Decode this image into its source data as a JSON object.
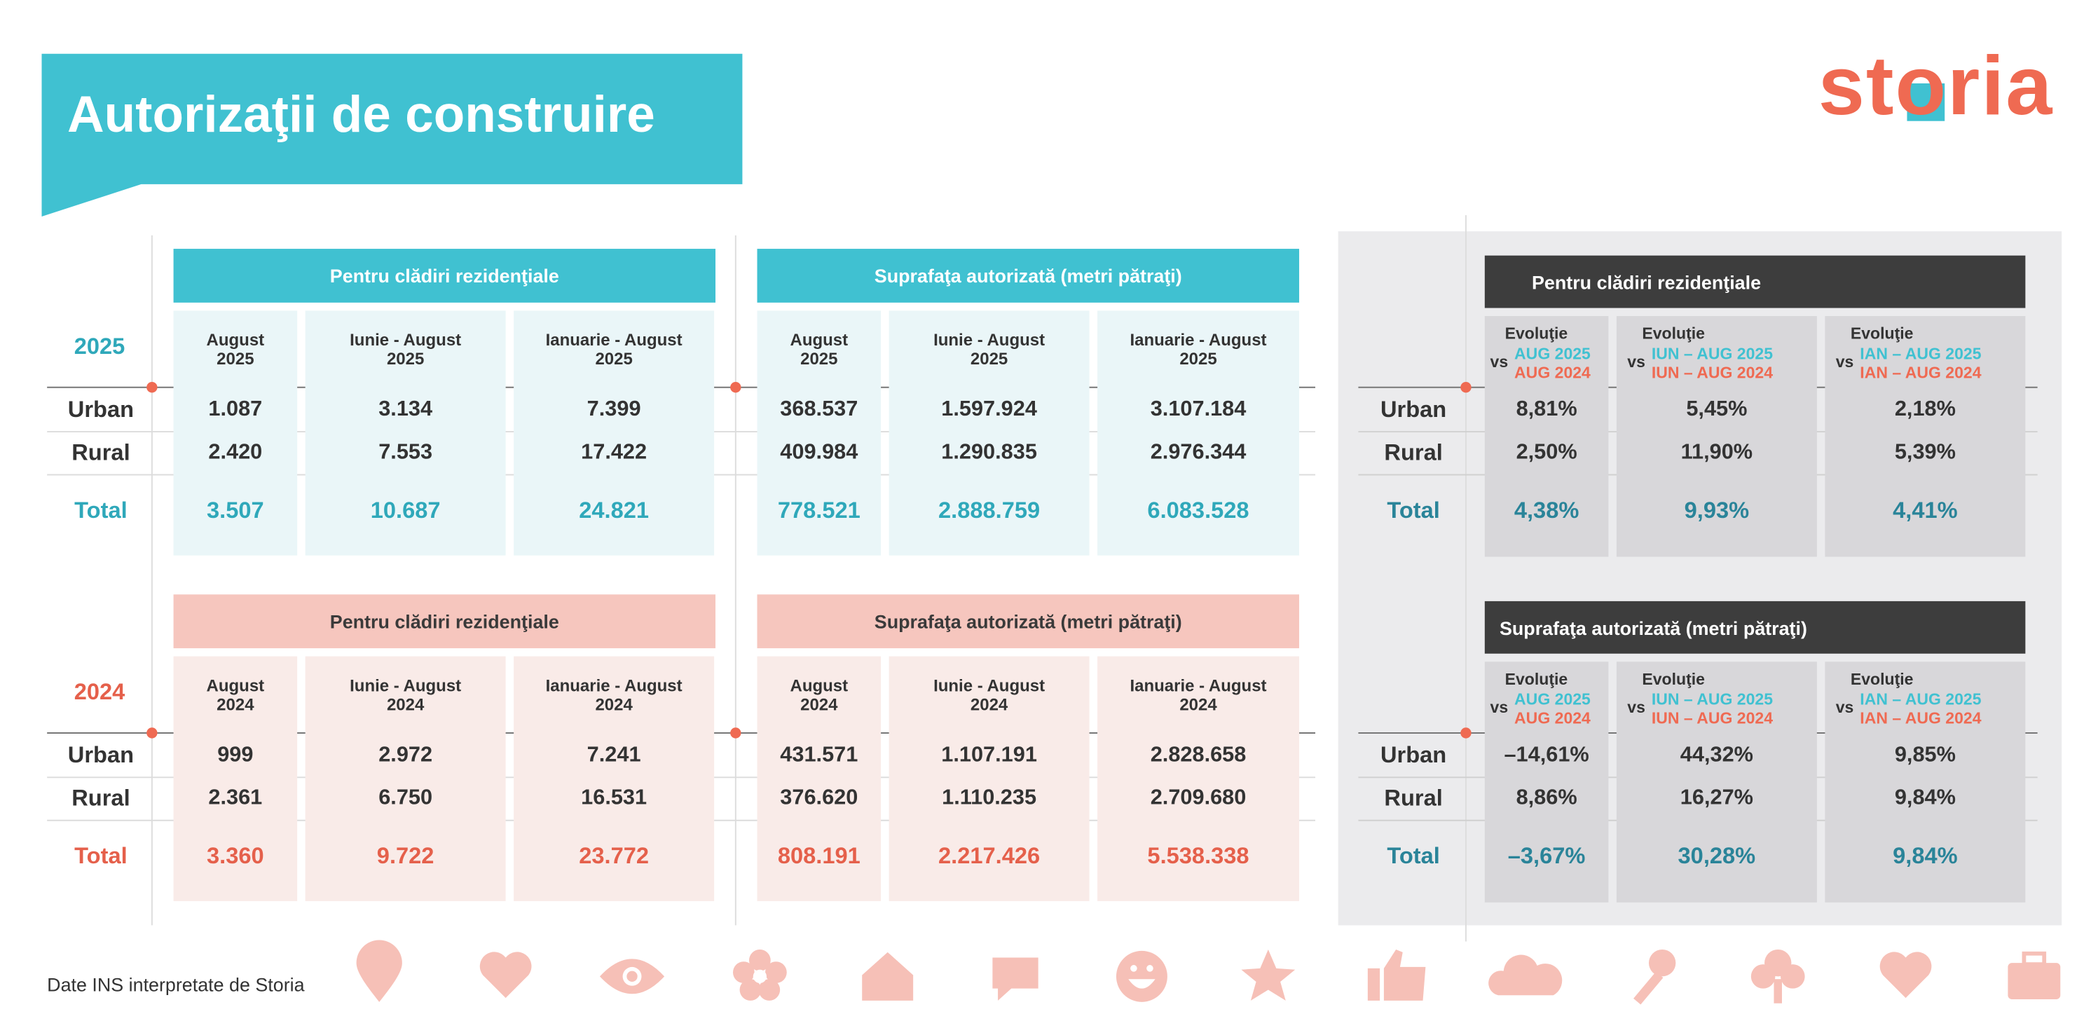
{
  "header": {
    "title": "Autorizaţii de construire",
    "logo": "storia"
  },
  "years": [
    {
      "year": "2025",
      "groups": [
        {
          "title": "Pentru clădiri rezidenţiale",
          "columns": [
            [
              "August",
              "2025"
            ],
            [
              "Iunie - August",
              "2025"
            ],
            [
              "Ianuarie - August",
              "2025"
            ]
          ]
        },
        {
          "title": "Suprafaţa autorizată (metri pătraţi)",
          "columns": [
            [
              "August",
              "2025"
            ],
            [
              "Iunie - August",
              "2025"
            ],
            [
              "Ianuarie - August",
              "2025"
            ]
          ]
        }
      ],
      "rows": [
        {
          "label": "Urban",
          "cells": [
            "1.087",
            "3.134",
            "7.399",
            "368.537",
            "1.597.924",
            "3.107.184"
          ]
        },
        {
          "label": "Rural",
          "cells": [
            "2.420",
            "7.553",
            "17.422",
            "409.984",
            "1.290.835",
            "2.976.344"
          ]
        },
        {
          "label": "Total",
          "cells": [
            "3.507",
            "10.687",
            "24.821",
            "778.521",
            "2.888.759",
            "6.083.528"
          ]
        }
      ]
    },
    {
      "year": "2024",
      "groups": [
        {
          "title": "Pentru clădiri rezidenţiale",
          "columns": [
            [
              "August",
              "2024"
            ],
            [
              "Iunie - August",
              "2024"
            ],
            [
              "Ianuarie - August",
              "2024"
            ]
          ]
        },
        {
          "title": "Suprafaţa autorizată (metri pătraţi)",
          "columns": [
            [
              "August",
              "2024"
            ],
            [
              "Iunie - August",
              "2024"
            ],
            [
              "Ianuarie - August",
              "2024"
            ]
          ]
        }
      ],
      "rows": [
        {
          "label": "Urban",
          "cells": [
            "999",
            "2.972",
            "7.241",
            "431.571",
            "1.107.191",
            "2.828.658"
          ]
        },
        {
          "label": "Rural",
          "cells": [
            "2.361",
            "6.750",
            "16.531",
            "376.620",
            "1.110.235",
            "2.709.680"
          ]
        },
        {
          "label": "Total",
          "cells": [
            "3.360",
            "9.722",
            "23.772",
            "808.191",
            "2.217.426",
            "5.538.338"
          ]
        }
      ]
    }
  ],
  "evolution": [
    {
      "title": "Pentru clădiri rezidenţiale",
      "columns": [
        [
          "Evoluţie",
          "vs",
          "AUG 2025",
          "AUG 2024"
        ],
        [
          "Evoluţie",
          "vs",
          "IUN – AUG 2025",
          "IUN – AUG 2024"
        ],
        [
          "Evoluţie",
          "vs",
          "IAN – AUG 2025",
          "IAN – AUG 2024"
        ]
      ],
      "rows": [
        {
          "label": "Urban",
          "cells": [
            "8,81%",
            "5,45%",
            "2,18%"
          ]
        },
        {
          "label": "Rural",
          "cells": [
            "2,50%",
            "11,90%",
            "5,39%"
          ]
        },
        {
          "label": "Total",
          "cells": [
            "4,38%",
            "9,93%",
            "4,41%"
          ]
        }
      ]
    },
    {
      "title": "Suprafaţa autorizată (metri pătraţi)",
      "columns": [
        [
          "Evoluţie",
          "vs",
          "AUG 2025",
          "AUG 2024"
        ],
        [
          "Evoluţie",
          "vs",
          "IUN – AUG 2025",
          "IUN – AUG 2024"
        ],
        [
          "Evoluţie",
          "vs",
          "IAN – AUG 2025",
          "IAN – AUG 2024"
        ]
      ],
      "rows": [
        {
          "label": "Urban",
          "cells": [
            "–14,61%",
            "44,32%",
            "9,85%"
          ]
        },
        {
          "label": "Rural",
          "cells": [
            "8,86%",
            "16,27%",
            "9,84%"
          ]
        },
        {
          "label": "Total",
          "cells": [
            "–3,67%",
            "30,28%",
            "9,84%"
          ]
        }
      ]
    }
  ],
  "footer": {
    "source": "Date INS interpretate de Storia"
  }
}
